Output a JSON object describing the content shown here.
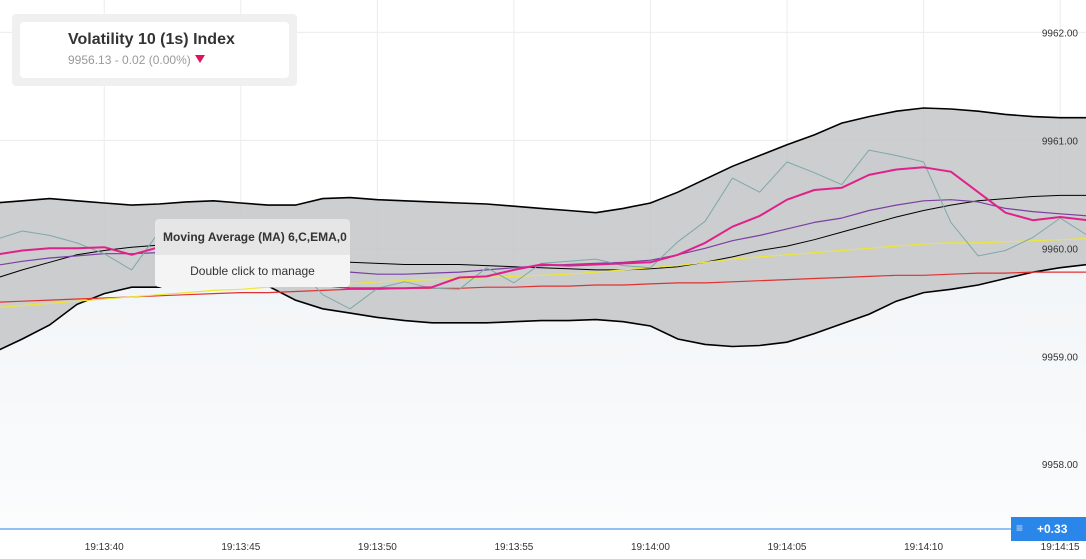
{
  "header": {
    "title": "Volatility 10 (1s) Index",
    "price_change": "9956.13 - 0.02 (0.00%)",
    "change_direction_icon": "triangle-down-icon",
    "change_color": "#e0115f"
  },
  "tooltip": {
    "indicator_name": "Moving Average (MA) 6,C,EMA,0",
    "hint": "Double click to manage"
  },
  "badge": {
    "icon": "menu-lines-icon",
    "value": "+0.33",
    "color": "#2a86e9"
  },
  "chart_data": {
    "type": "line",
    "ylim": [
      9957.4,
      9962.3
    ],
    "y_ticks": [
      9962.0,
      9961.0,
      9960.0,
      9959.0,
      9958.0
    ],
    "y_tick_labels": [
      "9962.00",
      "9961.00",
      "9960.00",
      "9959.00",
      "9958.00"
    ],
    "x_time_range": [
      "19:13:36",
      "19:14:15.8"
    ],
    "x_tick_labels": [
      "19:13:40",
      "19:13:45",
      "19:13:50",
      "19:13:55",
      "19:14:00",
      "19:14:05",
      "19:14:10",
      "19:14:15"
    ],
    "x_tick_seconds": [
      4,
      9,
      14,
      19,
      24,
      29,
      34,
      39
    ],
    "grid": true,
    "x": [
      0,
      1,
      2,
      3,
      4,
      5,
      6,
      7,
      8,
      9,
      10,
      11,
      12,
      13,
      14,
      15,
      16,
      17,
      18,
      19,
      20,
      21,
      22,
      23,
      24,
      25,
      26,
      27,
      28,
      29,
      30,
      31,
      32,
      33,
      34,
      35,
      36,
      37,
      38,
      39,
      40,
      41
    ],
    "bands": {
      "name": "",
      "fill": "#c4c6c8",
      "edge_color": "#000000",
      "upper": [
        9960.42,
        9960.44,
        9960.46,
        9960.44,
        9960.42,
        9960.4,
        9960.41,
        9960.43,
        9960.44,
        9960.42,
        9960.4,
        9960.4,
        9960.46,
        9960.47,
        9960.45,
        9960.44,
        9960.43,
        9960.42,
        9960.41,
        9960.39,
        9960.37,
        9960.35,
        9960.33,
        9960.37,
        9960.42,
        9960.52,
        9960.64,
        9960.76,
        9960.86,
        9960.96,
        9961.05,
        9961.16,
        9961.22,
        9961.27,
        9961.3,
        9961.29,
        9961.27,
        9961.24,
        9961.22,
        9961.21,
        9961.21,
        9961.25
      ],
      "middle": [
        9959.72,
        9959.8,
        9959.87,
        9959.94,
        9959.98,
        9960.01,
        9960.03,
        9960.02,
        9960.0,
        9959.98,
        9959.94,
        9959.9,
        9959.88,
        9959.87,
        9959.86,
        9959.85,
        9959.85,
        9959.85,
        9959.84,
        9959.83,
        9959.82,
        9959.81,
        9959.8,
        9959.8,
        9959.81,
        9959.83,
        9959.87,
        9959.92,
        9959.98,
        9960.02,
        9960.08,
        9960.15,
        9960.22,
        9960.29,
        9960.35,
        9960.4,
        9960.44,
        9960.46,
        9960.48,
        9960.49,
        9960.49,
        9960.47
      ],
      "lower": [
        9959.04,
        9959.16,
        9959.29,
        9959.48,
        9959.58,
        9959.64,
        9959.64,
        9959.72,
        9959.8,
        9959.77,
        9959.65,
        9959.52,
        9959.44,
        9959.4,
        9959.36,
        9959.33,
        9959.31,
        9959.31,
        9959.31,
        9959.32,
        9959.33,
        9959.33,
        9959.34,
        9959.32,
        9959.28,
        9959.16,
        9959.11,
        9959.09,
        9959.1,
        9959.13,
        9959.21,
        9959.3,
        9959.39,
        9959.51,
        9959.59,
        9959.62,
        9959.66,
        9959.72,
        9959.78,
        9959.82,
        9959.85,
        9959.86
      ]
    },
    "series": [
      {
        "name": "",
        "color": "#7ea9a9",
        "width": 1,
        "values": [
          9960.08,
          9960.16,
          9960.12,
          9960.05,
          9959.95,
          9959.8,
          9960.15,
          9960.1,
          9959.95,
          9959.85,
          9959.68,
          9959.85,
          9959.57,
          9959.44,
          9959.63,
          9959.69,
          9959.63,
          9959.62,
          9959.82,
          9959.68,
          9959.86,
          9959.88,
          9959.9,
          9959.84,
          9959.82,
          9960.06,
          9960.25,
          9960.65,
          9960.52,
          9960.8,
          9960.7,
          9960.59,
          9960.91,
          9960.86,
          9960.8,
          9960.24,
          9959.93,
          9959.98,
          9960.1,
          9960.28,
          9960.12,
          9960.03
        ]
      },
      {
        "name": "",
        "color": "#e0218a",
        "width": 2,
        "values": [
          9959.94,
          9959.98,
          9960.0,
          9960.0,
          9960.01,
          9959.94,
          9960.01,
          9960.0,
          9959.95,
          9959.87,
          9959.8,
          9959.79,
          9959.66,
          9959.63,
          9959.63,
          9959.63,
          9959.64,
          9959.73,
          9959.74,
          9959.8,
          9959.85,
          9959.84,
          9959.85,
          9959.86,
          9959.87,
          9959.94,
          9960.05,
          9960.2,
          9960.3,
          9960.45,
          9960.54,
          9960.56,
          9960.68,
          9960.73,
          9960.75,
          9960.71,
          9960.52,
          9960.33,
          9960.26,
          9960.29,
          9960.26,
          9960.18
        ]
      },
      {
        "name": "",
        "color": "#7a3fa0",
        "width": 1.2,
        "values": [
          9959.84,
          9959.88,
          9959.91,
          9959.93,
          9959.95,
          9959.95,
          9959.96,
          9959.97,
          9959.96,
          9959.93,
          9959.89,
          9959.84,
          9959.8,
          9959.78,
          9959.76,
          9959.76,
          9959.77,
          9959.78,
          9959.8,
          9959.82,
          9959.84,
          9959.85,
          9959.86,
          9959.87,
          9959.89,
          9959.94,
          9960.0,
          9960.07,
          9960.12,
          9960.18,
          9960.24,
          9960.28,
          9960.35,
          9960.4,
          9960.44,
          9960.45,
          9960.43,
          9960.37,
          9960.34,
          9960.32,
          9960.3,
          9960.25
        ]
      },
      {
        "name": "",
        "color": "#ece63a",
        "width": 1.2,
        "values": [
          9959.45,
          9959.47,
          9959.49,
          9959.51,
          9959.53,
          9959.55,
          9959.57,
          9959.59,
          9959.61,
          9959.62,
          9959.64,
          9959.65,
          9959.66,
          9959.67,
          9959.69,
          9959.7,
          9959.71,
          9959.72,
          9959.73,
          9959.74,
          9959.75,
          9959.76,
          9959.78,
          9959.8,
          9959.82,
          9959.84,
          9959.87,
          9959.9,
          9959.92,
          9959.94,
          9959.96,
          9959.98,
          9960.0,
          9960.02,
          9960.04,
          9960.05,
          9960.05,
          9960.06,
          9960.07,
          9960.08,
          9960.09,
          9960.09
        ]
      },
      {
        "name": "",
        "color": "#e03232",
        "width": 1.2,
        "values": [
          9959.5,
          9959.51,
          9959.52,
          9959.53,
          9959.54,
          9959.55,
          9959.56,
          9959.57,
          9959.58,
          9959.59,
          9959.59,
          9959.6,
          9959.61,
          9959.62,
          9959.62,
          9959.63,
          9959.63,
          9959.63,
          9959.64,
          9959.64,
          9959.65,
          9959.65,
          9959.66,
          9959.66,
          9959.67,
          9959.68,
          9959.68,
          9959.69,
          9959.7,
          9959.71,
          9959.72,
          9959.73,
          9959.74,
          9959.75,
          9959.75,
          9959.76,
          9959.77,
          9959.77,
          9959.78,
          9959.78,
          9959.78,
          9959.78
        ]
      }
    ]
  }
}
